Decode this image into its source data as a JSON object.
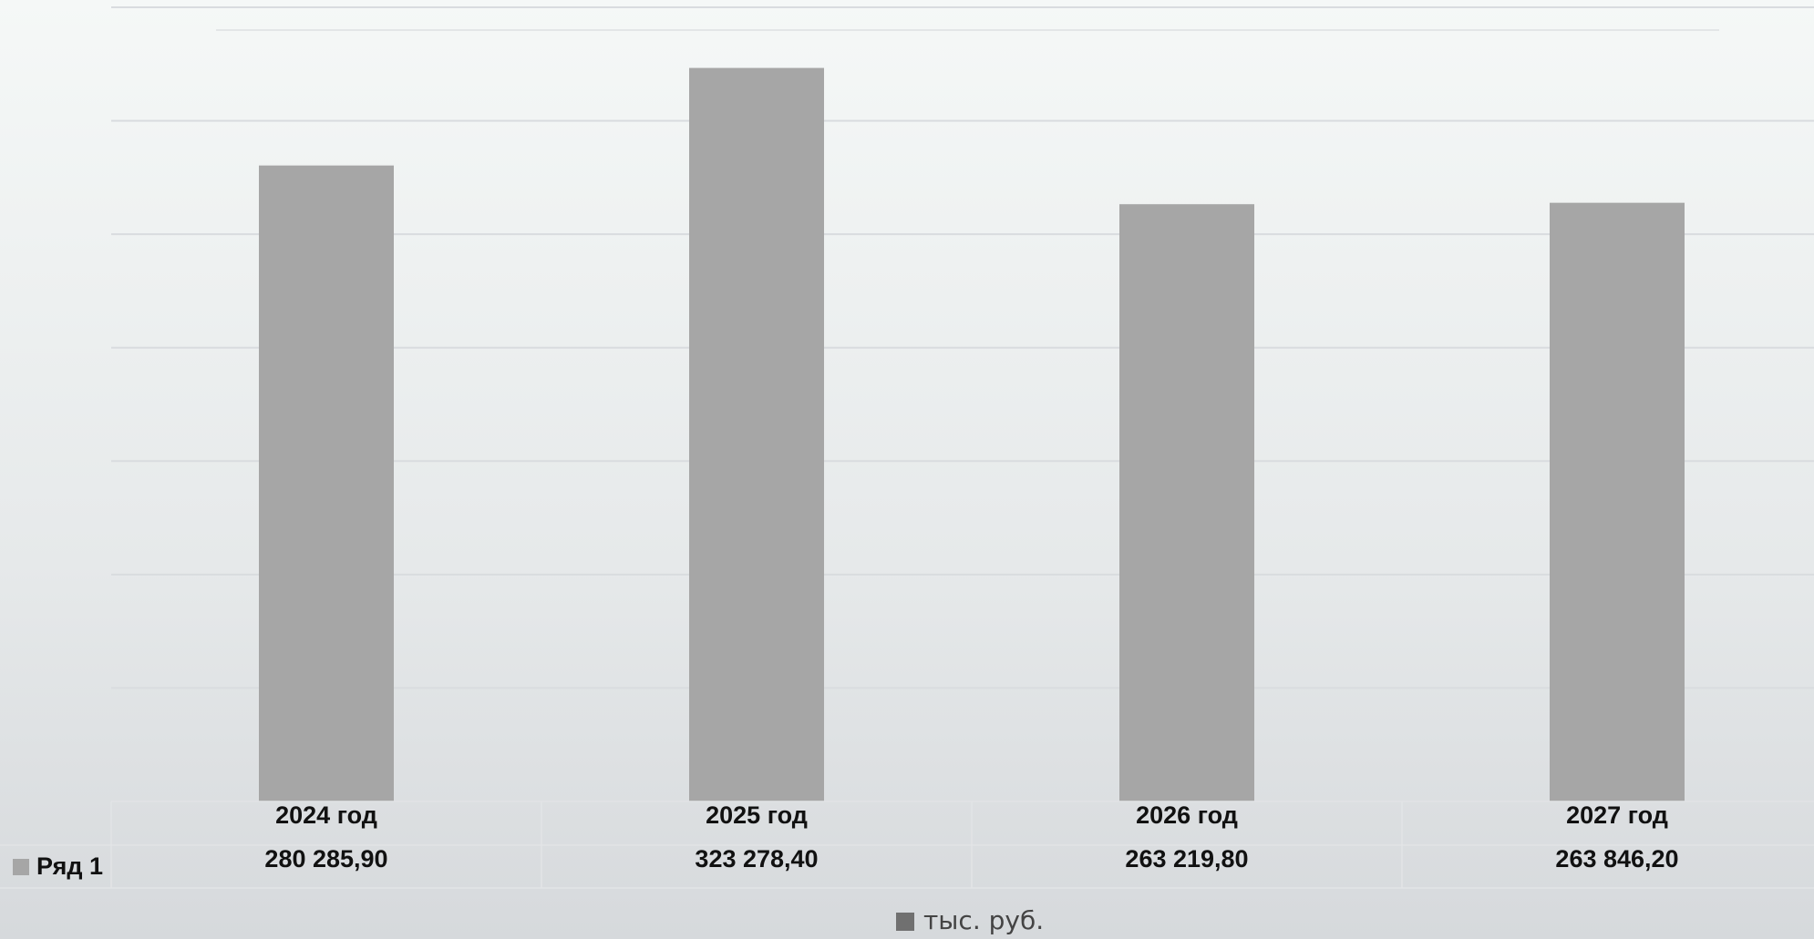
{
  "chart_data": {
    "type": "bar",
    "categories": [
      "2024 год",
      "2025 год",
      "2026 год",
      "2027 год"
    ],
    "series": [
      {
        "name": "Ряд 1",
        "values": [
          280285.9,
          323278.4,
          263219.8,
          263846.2
        ],
        "labels": [
          "280 285,90",
          "323 278,40",
          "263 219,80",
          "263 846,20"
        ]
      }
    ],
    "legend": [
      "тыс. руб."
    ],
    "ylim": [
      0,
      350000
    ],
    "grid": true,
    "legend_position": "bottom",
    "bar_color": "#a6a6a6",
    "legend_color": "#707070"
  }
}
